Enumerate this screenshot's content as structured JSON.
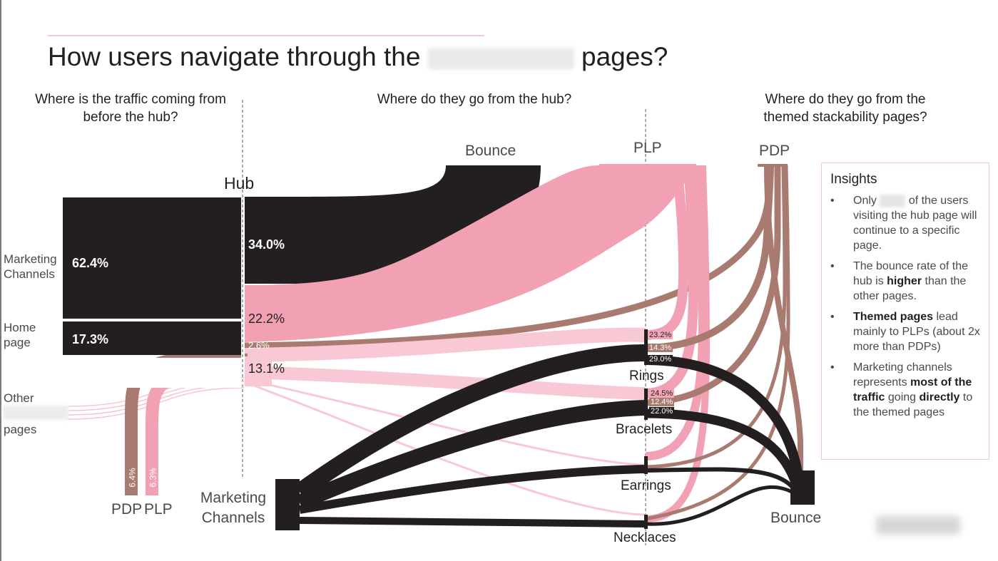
{
  "title": {
    "before": "How users navigate through the",
    "after": "pages?"
  },
  "headings": {
    "col1": "Where is the traffic coming from before the hub?",
    "col2": "Where do they go from the hub?",
    "col3": "Where do they go from the themed stackability pages?"
  },
  "nodes": {
    "hub": "Hub",
    "bounce_top": "Bounce",
    "plp_top": "PLP",
    "pdp_top": "PDP",
    "bounce_bottom": "Bounce",
    "pdp_small": "PDP",
    "plp_small": "PLP",
    "marketing_channels_bottom": "Marketing Channels"
  },
  "sources": {
    "marketing_channels": "Marketing Channels",
    "home_page": "Home page",
    "other_pre": "Other",
    "other_post": "pages"
  },
  "themed_pages": {
    "rings": "Rings",
    "bracelets": "Bracelets",
    "earrings": "Earrings",
    "necklaces": "Necklaces"
  },
  "percentages": {
    "marketing": "62.4%",
    "home": "17.3%",
    "hub_bounce": "34.0%",
    "hub_plp": "22.2%",
    "hub_pdp": "2.6%",
    "hub_themed": "13.1%",
    "pdp_out": "6.4%",
    "plp_out": "6.3%",
    "rings_plp": "23.2%",
    "rings_pdp": "14.3%",
    "rings_bounce": "29.0%",
    "bracelets_plp": "24.5%",
    "bracelets_pdp": "12.4%",
    "bracelets_bounce": "22.0%"
  },
  "insights": {
    "title": "Insights",
    "b1_pre": "Only",
    "b1_post": "of the users visiting the hub page will continue to a specific page.",
    "b2_pre": "The bounce rate of the hub is",
    "b2_bold": "higher",
    "b2_post": "than the other pages.",
    "b3_bold": "Themed pages",
    "b3_post": "lead mainly to PLPs (about 2x more than PDPs)",
    "b4_pre": "Marketing channels represents",
    "b4_bold1": "most of the traffic",
    "b4_mid": "going",
    "b4_bold2": "directly",
    "b4_post": "to the themed pages"
  },
  "colors": {
    "dark": "#231f20",
    "pink": "#f1a1b3",
    "light_pink": "#f8c9d4",
    "brown": "#a97a70"
  }
}
